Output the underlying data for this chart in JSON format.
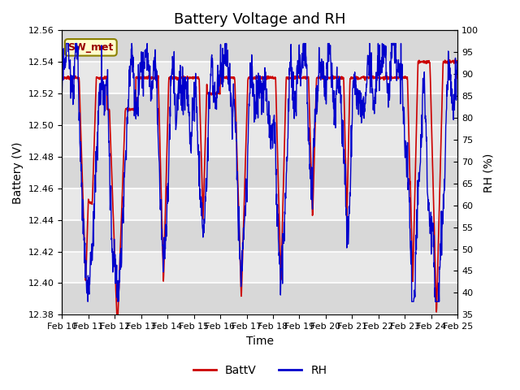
{
  "title": "Battery Voltage and RH",
  "xlabel": "Time",
  "ylabel_left": "Battery (V)",
  "ylabel_right": "RH (%)",
  "ylim_left": [
    12.38,
    12.56
  ],
  "ylim_right": [
    35,
    100
  ],
  "yticks_left": [
    12.38,
    12.4,
    12.42,
    12.44,
    12.46,
    12.48,
    12.5,
    12.52,
    12.54,
    12.56
  ],
  "yticks_right": [
    35,
    40,
    45,
    50,
    55,
    60,
    65,
    70,
    75,
    80,
    85,
    90,
    95,
    100
  ],
  "x_tick_labels": [
    "Feb 10",
    "Feb 11",
    "Feb 12",
    "Feb 13",
    "Feb 14",
    "Feb 15",
    "Feb 16",
    "Feb 17",
    "Feb 18",
    "Feb 19",
    "Feb 20",
    "Feb 21",
    "Feb 22",
    "Feb 23",
    "Feb 24",
    "Feb 25"
  ],
  "batt_color": "#cc0000",
  "rh_color": "#0000cc",
  "batt_linewidth": 1.2,
  "rh_linewidth": 1.0,
  "legend_labels": [
    "BattV",
    "RH"
  ],
  "annotation_text": "SW_met",
  "bg_color": "#ffffff",
  "plot_bg_color": "#e8e8e8",
  "grid_color": "#ffffff",
  "title_fontsize": 13,
  "axis_label_fontsize": 10,
  "tick_fontsize": 8,
  "legend_fontsize": 10,
  "figwidth": 6.4,
  "figheight": 4.8,
  "dpi": 100
}
